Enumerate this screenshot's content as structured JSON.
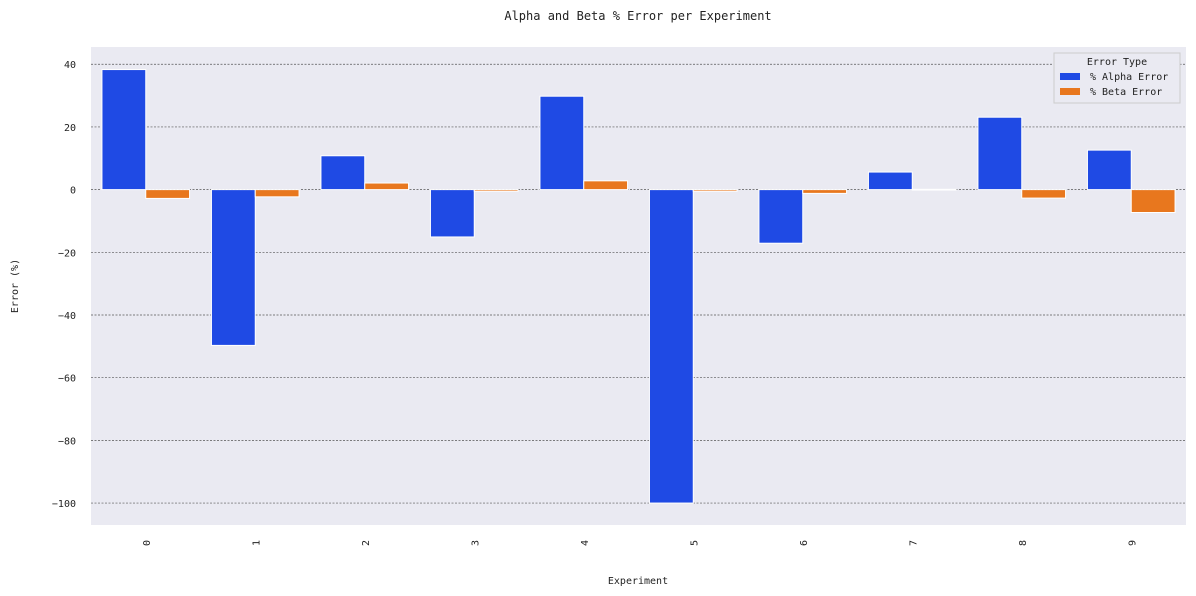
{
  "colors": {
    "plot_bg": "#EAEAF2",
    "grid": "#555555",
    "alpha": "#1F4AE4",
    "beta": "#E8771E"
  },
  "chart_data": {
    "type": "bar",
    "title": "Alpha and Beta % Error per Experiment",
    "xlabel": "Experiment",
    "ylabel": "Error (%)",
    "categories": [
      "0",
      "1",
      "2",
      "3",
      "4",
      "5",
      "6",
      "7",
      "8",
      "9"
    ],
    "series": [
      {
        "name": "% Alpha Error",
        "values": [
          38.3,
          -49.7,
          10.8,
          -15.1,
          29.8,
          -100.0,
          -17.1,
          5.6,
          23.1,
          12.6
        ]
      },
      {
        "name": "% Beta Error",
        "values": [
          -2.8,
          -2.3,
          2.1,
          -0.5,
          2.8,
          -0.5,
          -1.2,
          0.1,
          -2.7,
          -7.3
        ]
      }
    ],
    "ylim": [
      -107,
      45.5
    ],
    "yticks": [
      40,
      20,
      0,
      -20,
      -40,
      -60,
      -80,
      -100
    ],
    "ytick_labels": [
      "40",
      "20",
      "0",
      "−20",
      "−40",
      "−60",
      "−80",
      "−100"
    ],
    "grid": "horizontal dashed",
    "legend": {
      "title": "Error Type",
      "placement": "top-right"
    }
  }
}
